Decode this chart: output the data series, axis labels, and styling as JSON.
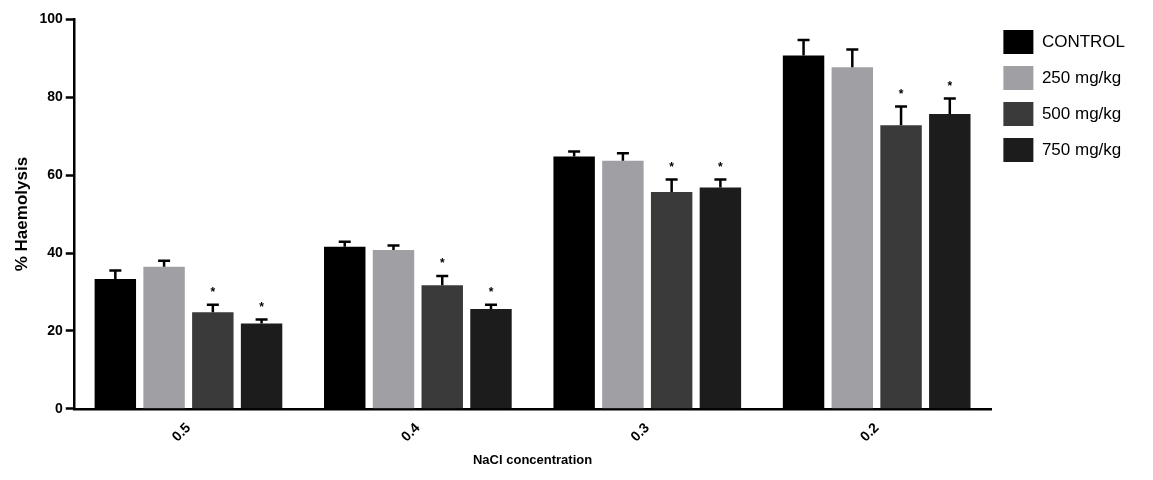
{
  "chart_data": {
    "type": "bar",
    "xlabel": "NaCl concentration",
    "ylabel": "% Haemolysis",
    "categories": [
      "0.5",
      "0.4",
      "0.3",
      "0.2"
    ],
    "series": [
      {
        "name": "CONTROL",
        "color": "#000000",
        "values": [
          33.3,
          41.6,
          64.8,
          90.7
        ],
        "errors": [
          [
            33.3,
            35.5
          ],
          [
            41.6,
            42.9
          ],
          [
            64.8,
            66.1
          ],
          [
            90.7,
            94.7
          ]
        ]
      },
      {
        "name": "250 mg/kg",
        "color": "#a0a0a4",
        "values": [
          36.5,
          40.8,
          63.7,
          87.7
        ],
        "errors": [
          [
            36.5,
            38
          ],
          [
            40.8,
            41.9
          ],
          [
            63.7,
            65.6
          ],
          [
            87.7,
            92.3
          ]
        ]
      },
      {
        "name": "500 mg/kg",
        "color": "#3a3a3a",
        "values": [
          24.8,
          31.7,
          55.7,
          72.8
        ],
        "errors": [
          [
            24.8,
            26.7
          ],
          [
            31.7,
            34.1
          ],
          [
            55.7,
            58.9
          ],
          [
            72.8,
            77.6
          ]
        ],
        "value_labels": [
          "*",
          "*",
          "*",
          "*"
        ]
      },
      {
        "name": "750 mg/kg",
        "color": "#1c1c1c",
        "values": [
          21.9,
          25.6,
          56.8,
          75.7
        ],
        "errors": [
          [
            21.9,
            22.9
          ],
          [
            25.6,
            26.7
          ],
          [
            56.8,
            58.9
          ],
          [
            75.7,
            79.7
          ]
        ],
        "value_labels": [
          "*",
          "*",
          "*",
          "*"
        ]
      }
    ],
    "ylim": [
      0,
      100
    ],
    "yticks": [
      0,
      20,
      40,
      60,
      80,
      100
    ],
    "grid": false,
    "legend": "top right"
  }
}
